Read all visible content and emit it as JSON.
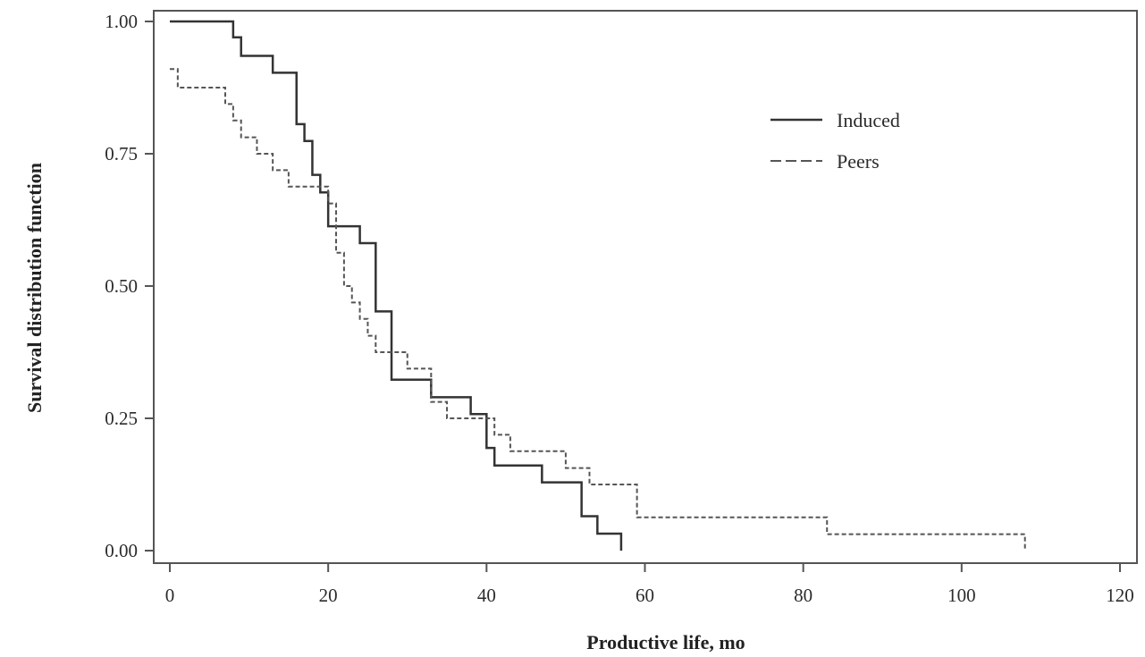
{
  "chart_data": {
    "type": "line",
    "step": true,
    "xlabel": "Productive life, mo",
    "ylabel": "Survival distribution function",
    "xlim": [
      0,
      120
    ],
    "ylim": [
      0,
      1
    ],
    "xticks": [
      0,
      20,
      40,
      60,
      80,
      100,
      120
    ],
    "xtick_labels": [
      "0",
      "20",
      "40",
      "60",
      "80",
      "100",
      "120"
    ],
    "yticks": [
      0,
      0.25,
      0.5,
      0.75,
      1
    ],
    "ytick_labels": [
      "0.00",
      "0.25",
      "0.50",
      "0.75",
      "1.00"
    ],
    "grid": false,
    "legend_position": "upper-right",
    "series": [
      {
        "name": "Induced",
        "line_style": "solid",
        "color": "#333333",
        "points": [
          [
            0,
            1.0
          ],
          [
            8,
            0.97
          ],
          [
            9,
            0.935
          ],
          [
            13,
            0.903
          ],
          [
            16,
            0.806
          ],
          [
            17,
            0.774
          ],
          [
            18,
            0.71
          ],
          [
            19,
            0.677
          ],
          [
            20,
            0.613
          ],
          [
            24,
            0.581
          ],
          [
            26,
            0.452
          ],
          [
            28,
            0.323
          ],
          [
            33,
            0.29
          ],
          [
            38,
            0.258
          ],
          [
            40,
            0.194
          ],
          [
            41,
            0.161
          ],
          [
            47,
            0.129
          ],
          [
            52,
            0.065
          ],
          [
            54,
            0.032
          ],
          [
            57,
            0.0
          ]
        ]
      },
      {
        "name": "Peers",
        "line_style": "dashed",
        "color": "#555555",
        "points": [
          [
            0,
            0.91
          ],
          [
            1,
            0.875
          ],
          [
            7,
            0.844
          ],
          [
            8,
            0.813
          ],
          [
            9,
            0.781
          ],
          [
            11,
            0.75
          ],
          [
            13,
            0.719
          ],
          [
            15,
            0.688
          ],
          [
            20,
            0.656
          ],
          [
            21,
            0.563
          ],
          [
            22,
            0.5
          ],
          [
            23,
            0.469
          ],
          [
            24,
            0.438
          ],
          [
            25,
            0.406
          ],
          [
            26,
            0.375
          ],
          [
            30,
            0.344
          ],
          [
            33,
            0.281
          ],
          [
            35,
            0.25
          ],
          [
            41,
            0.219
          ],
          [
            43,
            0.188
          ],
          [
            50,
            0.156
          ],
          [
            53,
            0.125
          ],
          [
            59,
            0.063
          ],
          [
            83,
            0.031
          ],
          [
            108,
            0.0
          ]
        ]
      }
    ]
  }
}
